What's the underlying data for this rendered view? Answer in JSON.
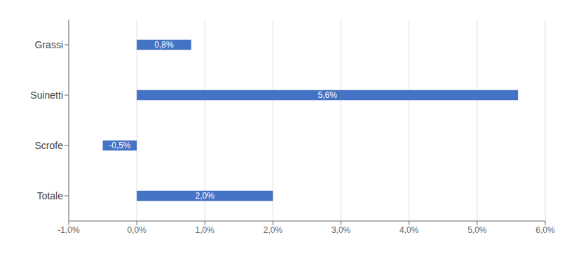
{
  "chart_data": {
    "type": "bar",
    "orientation": "horizontal",
    "categories": [
      "Grassi",
      "Suinetti",
      "Scrofe",
      "Totale"
    ],
    "values": [
      0.8,
      5.6,
      -0.5,
      2.0
    ],
    "value_labels": [
      "0,8%",
      "5,6%",
      "-0,5%",
      "2,0%"
    ],
    "data_labels": true,
    "color": "#4472C4",
    "xlim": [
      -1.0,
      6.0
    ],
    "xticks": [
      {
        "value": -1.0,
        "label": "-1,0%"
      },
      {
        "value": 0.0,
        "label": "0,0%"
      },
      {
        "value": 1.0,
        "label": "1,0%"
      },
      {
        "value": 2.0,
        "label": "2,0%"
      },
      {
        "value": 3.0,
        "label": "3,0%"
      },
      {
        "value": 4.0,
        "label": "4,0%"
      },
      {
        "value": 5.0,
        "label": "5,0%"
      },
      {
        "value": 6.0,
        "label": "6,0%"
      }
    ],
    "grid": true
  }
}
